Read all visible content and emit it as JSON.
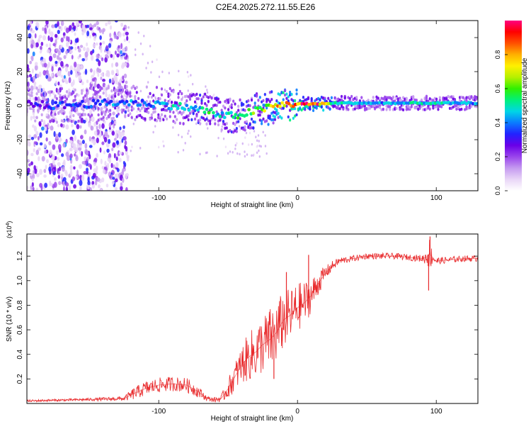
{
  "page_title": "C2E4.2025.272.11.55.E26",
  "colors": {
    "snr_line": "#e8282a",
    "axis": "#000000",
    "colormap": [
      "#ffffff",
      "#e9d6f7",
      "#c59af0",
      "#9a45ec",
      "#6a00e8",
      "#2222ff",
      "#0a7cff",
      "#00d6e6",
      "#00f07a",
      "#30f000",
      "#b6f000",
      "#fff000",
      "#ffb000",
      "#ff5000",
      "#ff0000",
      "#ff0080"
    ]
  },
  "chart_data": [
    {
      "type": "heatmap",
      "title": "",
      "xlabel": "Height of straight line (km)",
      "ylabel": "Frequency (Hz)",
      "xlim": [
        -195,
        130
      ],
      "ylim": [
        -50,
        50
      ],
      "xticks": [
        -100,
        0,
        100
      ],
      "yticks": [
        -40,
        -20,
        0,
        20,
        40
      ],
      "xtick_labels": [
        "-100",
        "0",
        "100"
      ],
      "ytick_labels": [
        "-40",
        "-20",
        "0",
        "20",
        "40"
      ],
      "colorbar": {
        "label": "Normalized spectral amplitude",
        "range": [
          0,
          1
        ],
        "ticks": [
          0.0,
          0.2,
          0.4,
          0.6,
          0.8
        ],
        "tick_labels": [
          "0.0",
          "0.2",
          "0.4",
          "0.6",
          "0.8"
        ]
      },
      "ridge": {
        "description_x": [
          -195,
          -175,
          -150,
          -125,
          -100,
          -80,
          -65,
          -55,
          -45,
          -35,
          -25,
          -15,
          -5,
          5,
          15,
          30,
          60,
          100,
          130
        ],
        "frequency_hz": [
          1,
          0,
          1,
          2,
          1,
          -1,
          -3,
          -6,
          -6,
          -4,
          -2,
          0,
          1,
          1,
          1,
          1.5,
          1.5,
          1.5,
          1.5
        ],
        "amplitude": [
          0.3,
          0.35,
          0.4,
          0.4,
          0.45,
          0.5,
          0.55,
          0.5,
          0.55,
          0.6,
          0.7,
          0.8,
          0.9,
          0.95,
          0.9,
          0.5,
          0.45,
          0.5,
          0.45
        ]
      },
      "noise_extent_x": [
        -195,
        -122
      ]
    },
    {
      "type": "line",
      "title": "",
      "xlabel": "Height of straight line (km)",
      "ylabel": "SNR (10 * v/v)",
      "yscale_label": "(x10",
      "yscale_exponent": "4",
      "xlim": [
        -195,
        130
      ],
      "ylim": [
        0,
        1.38
      ],
      "xticks": [
        -100,
        0,
        100
      ],
      "yticks": [
        0.2,
        0.4,
        0.6,
        0.8,
        1.0,
        1.2
      ],
      "xtick_labels": [
        "-100",
        "0",
        "100"
      ],
      "ytick_labels": [
        "0.2",
        "0.4",
        "0.6",
        "0.8",
        "1.0",
        "1.2"
      ],
      "series": [
        {
          "name": "SNR",
          "x": [
            -195,
            -180,
            -160,
            -140,
            -125,
            -118,
            -110,
            -100,
            -90,
            -80,
            -72,
            -65,
            -60,
            -55,
            -50,
            -45,
            -40,
            -35,
            -30,
            -25,
            -20,
            -15,
            -10,
            -5,
            0,
            5,
            10,
            15,
            20,
            25,
            30,
            40,
            50,
            60,
            70,
            80,
            90,
            93,
            95,
            98,
            100,
            110,
            120,
            130
          ],
          "y": [
            0.02,
            0.025,
            0.03,
            0.035,
            0.04,
            0.08,
            0.12,
            0.15,
            0.16,
            0.15,
            0.1,
            0.04,
            0.03,
            0.04,
            0.12,
            0.22,
            0.32,
            0.38,
            0.42,
            0.48,
            0.52,
            0.58,
            0.68,
            0.72,
            0.78,
            0.82,
            0.88,
            0.98,
            1.06,
            1.12,
            1.16,
            1.18,
            1.2,
            1.2,
            1.2,
            1.19,
            1.18,
            1.19,
            1.22,
            1.18,
            1.16,
            1.17,
            1.18,
            1.18
          ],
          "noise_amplitude": [
            0.01,
            0.01,
            0.01,
            0.015,
            0.02,
            0.05,
            0.06,
            0.06,
            0.06,
            0.06,
            0.05,
            0.02,
            0.02,
            0.03,
            0.08,
            0.12,
            0.16,
            0.2,
            0.22,
            0.24,
            0.26,
            0.26,
            0.24,
            0.22,
            0.2,
            0.18,
            0.14,
            0.1,
            0.06,
            0.04,
            0.03,
            0.025,
            0.025,
            0.025,
            0.025,
            0.025,
            0.03,
            0.06,
            0.14,
            0.04,
            0.03,
            0.025,
            0.025,
            0.025
          ],
          "spikes": [
            {
              "x": 95.5,
              "y": 1.36
            },
            {
              "x": 94.5,
              "y": 0.92
            },
            {
              "x": 8,
              "y": 1.21
            },
            {
              "x": -17,
              "y": 0.2
            },
            {
              "x": -8,
              "y": 1.07
            }
          ]
        }
      ]
    }
  ]
}
